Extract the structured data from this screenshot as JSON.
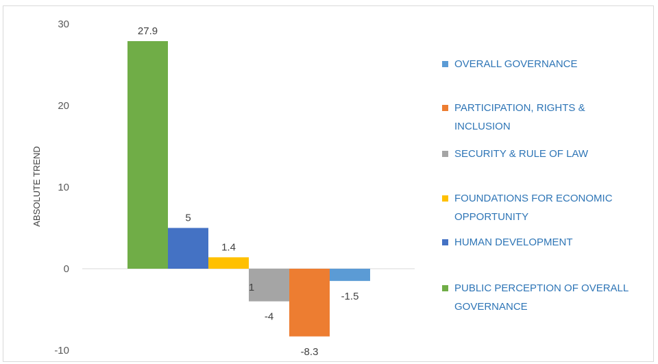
{
  "chart_data": {
    "type": "bar",
    "title": "",
    "xlabel": "",
    "ylabel": "ABSOLUTE TREND",
    "ylim": [
      -10,
      30
    ],
    "yticks": [
      30,
      20,
      10,
      0,
      -10
    ],
    "grid": false,
    "legend_position": "right",
    "series": [
      {
        "name": "PUBLIC PERCEPTION OF OVERALL GOVERNANCE",
        "value": 27.9,
        "label": "27.9",
        "color": "#70ad47"
      },
      {
        "name": "HUMAN DEVELOPMENT",
        "value": 5,
        "label": "5",
        "color": "#4472c4"
      },
      {
        "name": "FOUNDATIONS FOR ECONOMIC OPPORTUNITY",
        "value": 1.4,
        "label": "1.4",
        "color": "#ffc000"
      },
      {
        "name": "SECURITY & RULE OF LAW",
        "value": -4,
        "label": "-4",
        "color": "#a5a5a5"
      },
      {
        "name": "PARTICIPATION, RIGHTS & INCLUSION",
        "value": -8.3,
        "label": "-8.3",
        "color": "#ed7d31"
      },
      {
        "name": "OVERALL GOVERNANCE",
        "value": -1.5,
        "label": "-1.5",
        "color": "#5b9bd5"
      }
    ],
    "legend": [
      {
        "lines": [
          "OVERALL GOVERNANCE"
        ],
        "color": "#5b9bd5"
      },
      {
        "lines": [
          "PARTICIPATION, RIGHTS &",
          "INCLUSION"
        ],
        "color": "#ed7d31"
      },
      {
        "lines": [
          "SECURITY & RULE OF LAW"
        ],
        "color": "#a5a5a5"
      },
      {
        "lines": [
          "FOUNDATIONS FOR ECONOMIC",
          "OPPORTUNITY"
        ],
        "color": "#ffc000"
      },
      {
        "lines": [
          "HUMAN DEVELOPMENT"
        ],
        "color": "#4472c4"
      },
      {
        "lines": [
          "PUBLIC PERCEPTION OF OVERALL",
          "GOVERNANCE"
        ],
        "color": "#70ad47"
      }
    ],
    "stray_text": "1"
  }
}
